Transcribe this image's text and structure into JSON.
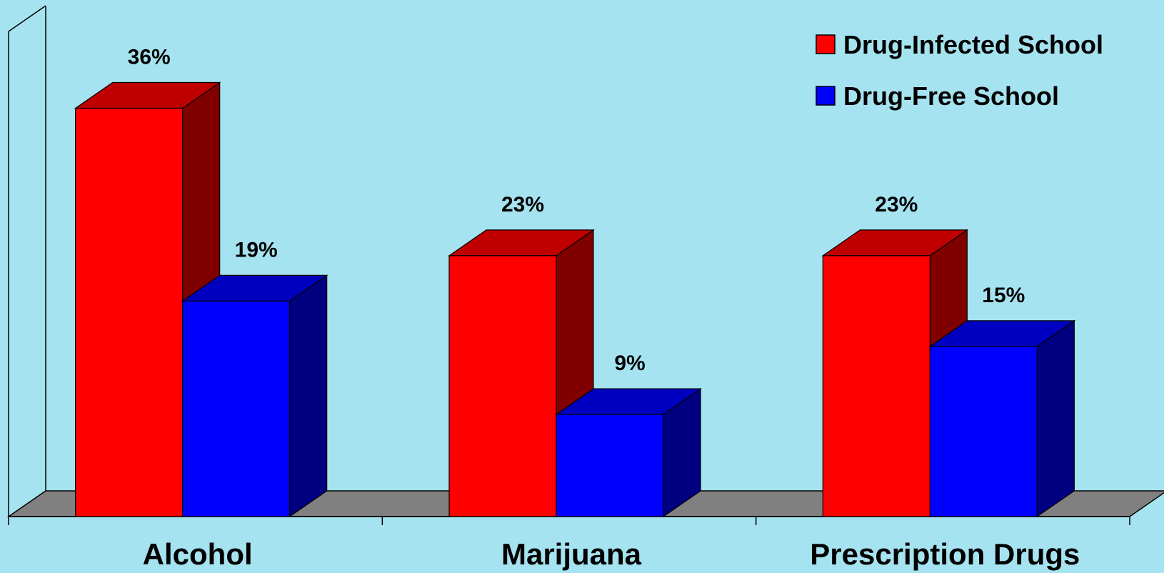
{
  "chart_data": {
    "type": "bar",
    "categories": [
      "Alcohol",
      "Marijuana",
      "Prescription Drugs"
    ],
    "series": [
      {
        "name": "Drug-Infected School",
        "values": [
          36,
          23,
          23
        ],
        "labels": [
          "36%",
          "23%",
          "23%"
        ]
      },
      {
        "name": "Drug-Free School",
        "values": [
          19,
          9,
          15
        ],
        "labels": [
          "19%",
          "9%",
          "15%"
        ]
      }
    ],
    "ylim": [
      0,
      40
    ],
    "grid": false,
    "legend": "top-right",
    "style": "3d-column"
  },
  "colors": {
    "background": "#a6e3f0",
    "floor": "#808080",
    "series_front": [
      "#ff0000",
      "#0000ff"
    ],
    "series_top": [
      "#c00000",
      "#0000c0"
    ],
    "series_side": [
      "#800000",
      "#000080"
    ]
  }
}
